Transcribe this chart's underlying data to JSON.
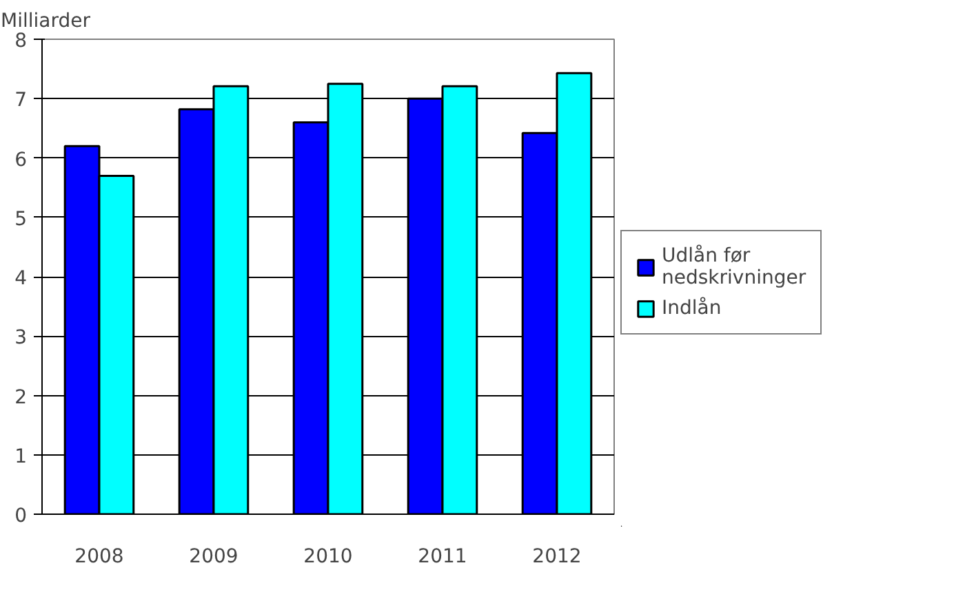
{
  "chart_data": {
    "type": "bar",
    "ylabel": "Milliarder",
    "categories": [
      "2008",
      "2009",
      "2010",
      "2011",
      "2012"
    ],
    "series": [
      {
        "name": "Udlån før nedskrivninger",
        "color": "#0000ff",
        "values": [
          6.2,
          6.82,
          6.6,
          7.0,
          6.42
        ]
      },
      {
        "name": "Indlån",
        "color": "#00ffff",
        "values": [
          5.7,
          7.21,
          7.25,
          7.21,
          7.43
        ]
      }
    ],
    "ylim": [
      0,
      8
    ],
    "yticks": [
      0,
      1,
      2,
      3,
      4,
      5,
      6,
      7,
      8
    ],
    "grid": "y",
    "legend": "right"
  }
}
